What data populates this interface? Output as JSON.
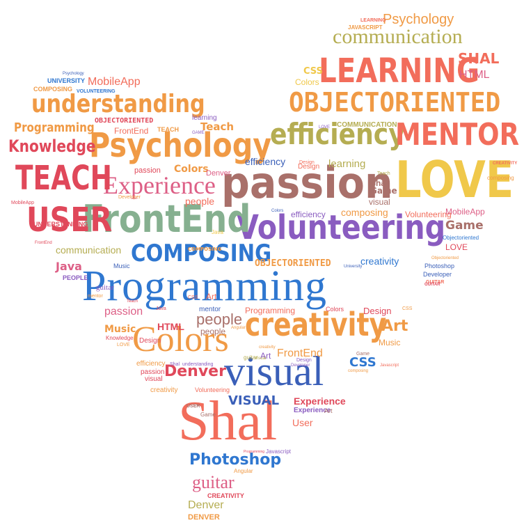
{
  "words": [
    "Programming",
    "passion",
    "LOVE",
    "Volunteering",
    "FrontEnd",
    "Psychology",
    "Shal",
    "visual",
    "LEARNING",
    "OBJECTORIENTED",
    "efficiency",
    "MENTOR",
    "communication",
    "understanding",
    "Experience",
    "TEACH",
    "USER",
    "Colors",
    "creativity",
    "COMPOSING",
    "Knowledge",
    "Psychology",
    "LEARNING",
    "JAVASCRIPT",
    "SHAL",
    "HTML",
    "CSS",
    "Colors",
    "Programming",
    "UNIVERSITY",
    "COMPOSING",
    "VOLUNTEERING",
    "MobileApp",
    "OBJECTORIENTED",
    "FrontEnd",
    "TEACH",
    "learning",
    "Teach",
    "GAME",
    "Colors",
    "Denver",
    "people",
    "passion",
    "efficiency",
    "Design",
    "learning",
    "COMMUNICATION",
    "LOVE",
    "composing",
    "Volunteering",
    "MobileApp",
    "Game",
    "Objectoriented",
    "LOVE",
    "Java",
    "PEOPLE",
    "guitar",
    "communication",
    "Music",
    "Java",
    "UNDERSTANDING",
    "MobileApp",
    "COMPOSING",
    "Colors",
    "OBJECTORIENTED",
    "creativity",
    "University",
    "Photoshop",
    "Developer",
    "GUITAR",
    "CSS",
    "mentor",
    "passion",
    "Programming",
    "Colors",
    "Design",
    "CSS",
    "people",
    "creativity",
    "Art",
    "Java",
    "Music",
    "Knowledge",
    "LOVE",
    "HTML",
    "Design",
    "people",
    "FrontEnd",
    "Art",
    "CSS",
    "Game",
    "Denver",
    "efficiency",
    "passion",
    "visual",
    "Shal",
    "understanding",
    "creativity",
    "Volunteering",
    "VISUAL",
    "Experience",
    "Experience",
    "Art",
    "User",
    "Photoshop",
    "guitar",
    "Denver",
    "CREATIVITY",
    "DENVER",
    "Angular",
    "Javascript",
    "Programming",
    "CREATIVITY",
    "composing",
    "efficiency",
    "Visual",
    "guitar",
    "Psychology",
    "USER",
    "Game",
    "Design",
    "Teach",
    "Shal",
    "Art",
    "Developer",
    "Objectoriented",
    "Design",
    "Angular",
    "Javascript",
    "GUITAR",
    "mentor",
    "Teach",
    "Developer"
  ],
  "colors": {
    "red": "#e0485a",
    "coral": "#f26d5b",
    "orange": "#f09a45",
    "gold": "#f0c84a",
    "olive": "#b5ad52",
    "green": "#86b090",
    "blue": "#2f77d0",
    "navy": "#3a5fb8",
    "purple": "#8a5cc0",
    "mauve": "#a9706a",
    "pink": "#dd5f86",
    "gray": "#9a9a9a"
  }
}
